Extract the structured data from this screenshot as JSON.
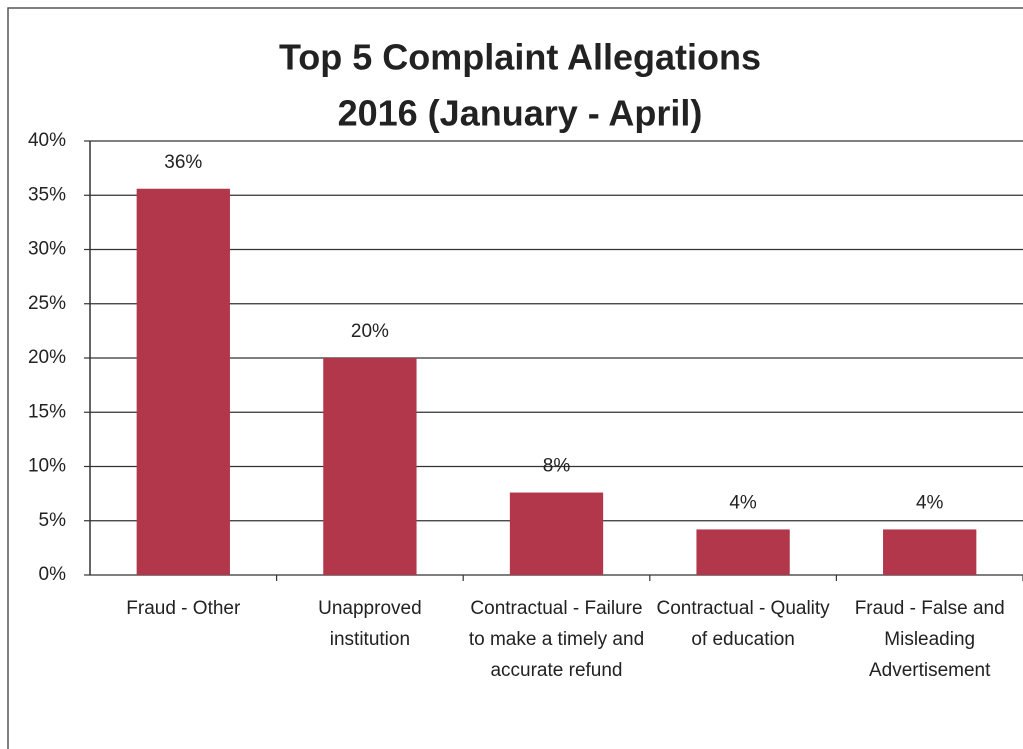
{
  "chart_data": {
    "type": "bar",
    "title": [
      "Top 5 Complaint Allegations",
      "2016 (January - April)"
    ],
    "categories": [
      "Fraud - Other",
      "Unapproved institution",
      "Contractual - Failure to make a timely and accurate refund",
      "Contractual - Quality of education",
      "Fraud - False and Misleading Advertisement"
    ],
    "values": [
      35.6,
      20,
      7.6,
      4.2,
      4.2
    ],
    "value_labels": [
      "36%",
      "20%",
      "8%",
      "4%",
      "4%"
    ],
    "color": "#b2374b",
    "ylim": [
      0,
      40
    ],
    "yticks": [
      {
        "value": 0,
        "label": "0%"
      },
      {
        "value": 5,
        "label": "5%"
      },
      {
        "value": 10,
        "label": "10%"
      },
      {
        "value": 15,
        "label": "15%"
      },
      {
        "value": 20,
        "label": "20%"
      },
      {
        "value": 25,
        "label": "25%"
      },
      {
        "value": 30,
        "label": "30%"
      },
      {
        "value": 35,
        "label": "35%"
      },
      {
        "value": 40,
        "label": "40%"
      }
    ],
    "grid": true
  }
}
